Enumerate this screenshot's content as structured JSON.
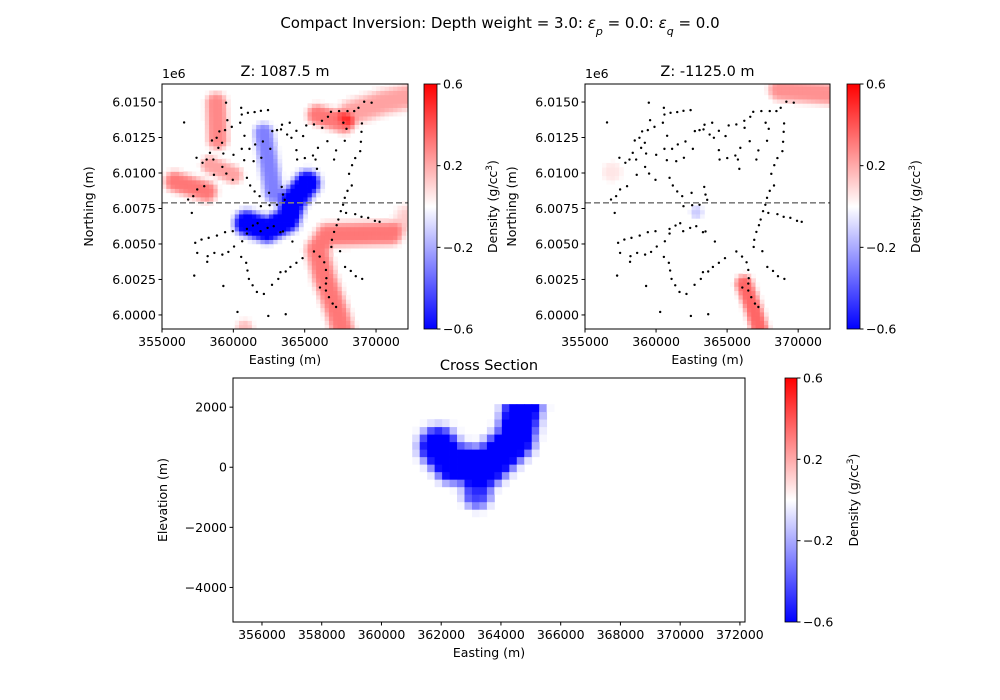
{
  "figure": {
    "suptitle": [
      {
        "t": "Compact Inversion: Depth weight = 3.0: "
      },
      {
        "t": "ε",
        "i": true
      },
      {
        "t": "p",
        "sub": true,
        "i": true
      },
      {
        "t": " = 0.0: "
      },
      {
        "t": "ε",
        "i": true
      },
      {
        "t": "q",
        "sub": true,
        "i": true
      },
      {
        "t": " = 0.0"
      }
    ]
  },
  "colors": {
    "section_line": "#808080",
    "stations": "#000000",
    "colormap": "bwr"
  },
  "colorbar": {
    "label": "Density (g/cc",
    "label_sup": "3",
    "label_end": ")",
    "range": [
      -0.6,
      0.6
    ],
    "ticks": [
      0.6,
      0.2,
      -0.2,
      -0.6
    ],
    "tick_labels": [
      "0.6",
      "0.2",
      "−0.2",
      "−0.6"
    ]
  },
  "chart_data": [
    {
      "type": "heatmap",
      "title": "Z: 1087.5 m",
      "xlabel": "Easting (m)",
      "ylabel": "Northing (m)",
      "offset_text": "1e6",
      "xlim": [
        355000,
        372240
      ],
      "ylim": [
        5999010,
        6016270
      ],
      "xticks": [
        355000,
        360000,
        365000,
        370000
      ],
      "xtick_labels": [
        "355000",
        "360000",
        "365000",
        "370000"
      ],
      "yticks": [
        6000000,
        6002500,
        6005000,
        6007500,
        6010000,
        6012500,
        6015000
      ],
      "ytick_labels": [
        "6.0000",
        "6.0025",
        "6.0050",
        "6.0075",
        "6.0100",
        "6.0125",
        "6.0150"
      ],
      "section_line_northing": 6007900,
      "anomalies": [
        {
          "value": 0.28,
          "width": 750,
          "path": [
            [
              358800,
              6014950
            ],
            [
              358900,
              6012400
            ]
          ]
        },
        {
          "value": 0.32,
          "width": 750,
          "path": [
            [
              355900,
              6009420
            ],
            [
              358130,
              6008720
            ]
          ]
        },
        {
          "value": 0.22,
          "width": 650,
          "path": [
            [
              358360,
              6010600
            ],
            [
              360010,
              6009890
            ]
          ]
        },
        {
          "value": 0.32,
          "width": 750,
          "path": [
            [
              365880,
              6014120
            ],
            [
              367760,
              6013540
            ]
          ]
        },
        {
          "value": 0.22,
          "width": 900,
          "path": [
            [
              368230,
              6014240
            ],
            [
              370500,
              6015000
            ],
            [
              372300,
              6015420
            ]
          ]
        },
        {
          "value": 0.32,
          "width": 850,
          "path": [
            [
              371050,
              6005780
            ],
            [
              366590,
              6005660
            ],
            [
              365880,
              6004610
            ],
            [
              366350,
              6002730
            ],
            [
              367290,
              6000140
            ],
            [
              367640,
              5999000
            ]
          ]
        },
        {
          "value": 0.12,
          "width": 1000,
          "path": [
            [
              372300,
              6006800
            ]
          ]
        },
        {
          "value": 0.15,
          "width": 600,
          "path": [
            [
              360800,
              5999100
            ]
          ]
        },
        {
          "value": -0.3,
          "width": 700,
          "path": [
            [
              362120,
              6012830
            ],
            [
              362830,
              6008600
            ]
          ]
        },
        {
          "value": -0.7,
          "width": 900,
          "path": [
            [
              360950,
              6006490
            ],
            [
              362360,
              6006020
            ],
            [
              363770,
              6006720
            ],
            [
              364240,
              6008130
            ],
            [
              365180,
              6009300
            ]
          ]
        }
      ],
      "stations": [
        [
          356550,
          6013560
        ],
        [
          359490,
          6014950
        ],
        [
          360550,
          6014590
        ],
        [
          360590,
          6014120
        ],
        [
          361020,
          6014240
        ],
        [
          361490,
          6014290
        ],
        [
          361930,
          6014380
        ],
        [
          362430,
          6014430
        ],
        [
          359580,
          6013720
        ],
        [
          359890,
          6013250
        ],
        [
          360480,
          6013540
        ],
        [
          360780,
          6012620
        ],
        [
          359420,
          6013020
        ],
        [
          359020,
          6012930
        ],
        [
          358830,
          6012480
        ],
        [
          358500,
          6012290
        ],
        [
          359210,
          6012130
        ],
        [
          358950,
          6011770
        ],
        [
          358360,
          6011420
        ],
        [
          358600,
          6010950
        ],
        [
          357420,
          6011070
        ],
        [
          357840,
          6010720
        ],
        [
          359300,
          6011370
        ],
        [
          360010,
          6011280
        ],
        [
          360590,
          6011700
        ],
        [
          361130,
          6011700
        ],
        [
          361530,
          6012010
        ],
        [
          362070,
          6012220
        ],
        [
          362590,
          6011700
        ],
        [
          360760,
          6010900
        ],
        [
          361420,
          6010830
        ],
        [
          361960,
          6011070
        ],
        [
          362730,
          6012950
        ],
        [
          363060,
          6013020
        ],
        [
          363410,
          6013400
        ],
        [
          363340,
          6013070
        ],
        [
          363950,
          6013540
        ],
        [
          363770,
          6012710
        ],
        [
          364070,
          6012480
        ],
        [
          364420,
          6012970
        ],
        [
          365110,
          6013350
        ],
        [
          364890,
          6012600
        ],
        [
          364420,
          6011610
        ],
        [
          364470,
          6010950
        ],
        [
          365010,
          6011050
        ],
        [
          365580,
          6011230
        ],
        [
          365760,
          6010950
        ],
        [
          365930,
          6011770
        ],
        [
          365860,
          6010290
        ],
        [
          365650,
          6013420
        ],
        [
          366210,
          6013680
        ],
        [
          366230,
          6013180
        ],
        [
          366630,
          6013960
        ],
        [
          366840,
          6014310
        ],
        [
          367410,
          6014360
        ],
        [
          368000,
          6014360
        ],
        [
          368470,
          6014360
        ],
        [
          368770,
          6014590
        ],
        [
          369170,
          6015020
        ],
        [
          369690,
          6014950
        ],
        [
          367710,
          6013540
        ],
        [
          367930,
          6013110
        ],
        [
          369010,
          6013490
        ],
        [
          368980,
          6012900
        ],
        [
          368940,
          6012200
        ],
        [
          368890,
          6011540
        ],
        [
          368540,
          6011050
        ],
        [
          368320,
          6010550
        ],
        [
          368110,
          6009940
        ],
        [
          368300,
          6009120
        ],
        [
          368000,
          6008740
        ],
        [
          367810,
          6008250
        ],
        [
          367690,
          6007760
        ],
        [
          367530,
          6007310
        ],
        [
          367360,
          6006720
        ],
        [
          367240,
          6006320
        ],
        [
          367060,
          6005850
        ],
        [
          366910,
          6005290
        ],
        [
          366870,
          6004790
        ],
        [
          367480,
          6004490
        ],
        [
          367900,
          6007190
        ],
        [
          368540,
          6007100
        ],
        [
          368980,
          6006910
        ],
        [
          369450,
          6006840
        ],
        [
          369920,
          6006630
        ],
        [
          370250,
          6006560
        ],
        [
          366590,
          6012240
        ],
        [
          367200,
          6011590
        ],
        [
          367810,
          6012270
        ],
        [
          367060,
          6010950
        ],
        [
          358130,
          6010950
        ],
        [
          359230,
          6010430
        ],
        [
          359510,
          6009960
        ],
        [
          359960,
          6009520
        ],
        [
          358640,
          6009870
        ],
        [
          357470,
          6008840
        ],
        [
          357960,
          6009070
        ],
        [
          357190,
          6008370
        ],
        [
          356830,
          6008130
        ],
        [
          357090,
          6007190
        ],
        [
          357330,
          6005080
        ],
        [
          357770,
          6005310
        ],
        [
          358270,
          6005430
        ],
        [
          358850,
          6005590
        ],
        [
          359420,
          6005830
        ],
        [
          359960,
          6005900
        ],
        [
          360620,
          6005190
        ],
        [
          357470,
          6004370
        ],
        [
          358200,
          6004140
        ],
        [
          358170,
          6003740
        ],
        [
          358670,
          6004370
        ],
        [
          359230,
          6004250
        ],
        [
          359650,
          6004440
        ],
        [
          360050,
          6004820
        ],
        [
          360550,
          6004090
        ],
        [
          360900,
          6003670
        ],
        [
          360990,
          6003130
        ],
        [
          361090,
          6002540
        ],
        [
          361350,
          6002090
        ],
        [
          361650,
          6001620
        ],
        [
          362140,
          6001480
        ],
        [
          362710,
          6002120
        ],
        [
          363150,
          6002540
        ],
        [
          363300,
          6003010
        ],
        [
          363670,
          6003060
        ],
        [
          364000,
          6003380
        ],
        [
          364420,
          6003670
        ],
        [
          364850,
          6004000
        ],
        [
          365650,
          6004470
        ],
        [
          366050,
          6004110
        ],
        [
          366370,
          6003710
        ],
        [
          366490,
          6003170
        ],
        [
          366520,
          6002590
        ],
        [
          366490,
          6002210
        ],
        [
          366070,
          6001930
        ],
        [
          366490,
          6001720
        ],
        [
          366700,
          6001250
        ],
        [
          366960,
          6000800
        ],
        [
          367200,
          6000560
        ],
        [
          367830,
          6003380
        ],
        [
          368230,
          6003100
        ],
        [
          368580,
          6002730
        ],
        [
          369030,
          6002540
        ],
        [
          357260,
          6002770
        ],
        [
          359300,
          6002040
        ],
        [
          360290,
          6000210
        ],
        [
          362450,
          5999930
        ],
        [
          363670,
          6000050
        ],
        [
          360950,
          6006060
        ],
        [
          360950,
          6005730
        ],
        [
          361370,
          6006300
        ],
        [
          361700,
          6006460
        ],
        [
          361910,
          6005900
        ],
        [
          362400,
          6006130
        ],
        [
          362830,
          6006250
        ],
        [
          363300,
          6005830
        ],
        [
          363480,
          6005880
        ],
        [
          364140,
          6005170
        ],
        [
          361180,
          6009120
        ],
        [
          360950,
          6009660
        ],
        [
          361490,
          6008700
        ],
        [
          361840,
          6008370
        ],
        [
          362500,
          6008600
        ],
        [
          363060,
          6007760
        ],
        [
          363390,
          6009020
        ],
        [
          363480,
          6008480
        ],
        [
          361930,
          6007660
        ],
        [
          362540,
          6007730
        ],
        [
          363600,
          6008110
        ]
      ]
    },
    {
      "type": "heatmap",
      "title": "Z: -1125.0 m",
      "xlabel": "Easting (m)",
      "ylabel": "Northing (m)",
      "offset_text": "1e6",
      "xlim": [
        355000,
        372240
      ],
      "ylim": [
        5999010,
        6016270
      ],
      "xticks": [
        355000,
        360000,
        365000,
        370000
      ],
      "xtick_labels": [
        "355000",
        "360000",
        "365000",
        "370000"
      ],
      "yticks": [
        6000000,
        6002500,
        6005000,
        6007500,
        6010000,
        6012500,
        6015000
      ],
      "ytick_labels": [
        "6.0000",
        "6.0025",
        "6.0050",
        "6.0075",
        "6.0100",
        "6.0125",
        "6.0150"
      ],
      "section_line_northing": 6007900,
      "stations_same_as_first_panel": true,
      "anomalies": [
        {
          "value": 0.26,
          "width": 800,
          "path": [
            [
              368700,
              6015900
            ],
            [
              372300,
              6015600
            ]
          ]
        },
        {
          "value": 0.36,
          "width": 650,
          "path": [
            [
              366200,
              6002200
            ],
            [
              366800,
              6000600
            ],
            [
              367300,
              5999000
            ]
          ]
        },
        {
          "value": 0.06,
          "width": 700,
          "path": [
            [
              356900,
              6010100
            ]
          ]
        },
        {
          "value": -0.12,
          "width": 450,
          "path": [
            [
              362850,
              6007250
            ]
          ]
        }
      ]
    },
    {
      "type": "heatmap",
      "title": "Cross Section",
      "xlabel": "Easting (m)",
      "ylabel": "Elevation (m)",
      "xlim": [
        355030,
        372170
      ],
      "ylim": [
        -5150,
        2970
      ],
      "model_top_elevation": 2100,
      "xticks": [
        356000,
        358000,
        360000,
        362000,
        364000,
        366000,
        368000,
        370000,
        372000
      ],
      "xtick_labels": [
        "356000",
        "358000",
        "360000",
        "362000",
        "364000",
        "366000",
        "368000",
        "370000",
        "372000"
      ],
      "yticks": [
        2000,
        0,
        -2000,
        -4000
      ],
      "ytick_labels": [
        "2000",
        "0",
        "−2000",
        "−4000"
      ],
      "anomalies": [
        {
          "value": -0.75,
          "width": 650,
          "path": [
            [
              364790,
              2300
            ],
            [
              364470,
              930
            ],
            [
              363510,
              20
            ],
            [
              362390,
              140
            ],
            [
              361900,
              700
            ]
          ]
        },
        {
          "value": -0.45,
          "width": 500,
          "path": [
            [
              363200,
              -880
            ]
          ]
        }
      ]
    }
  ]
}
